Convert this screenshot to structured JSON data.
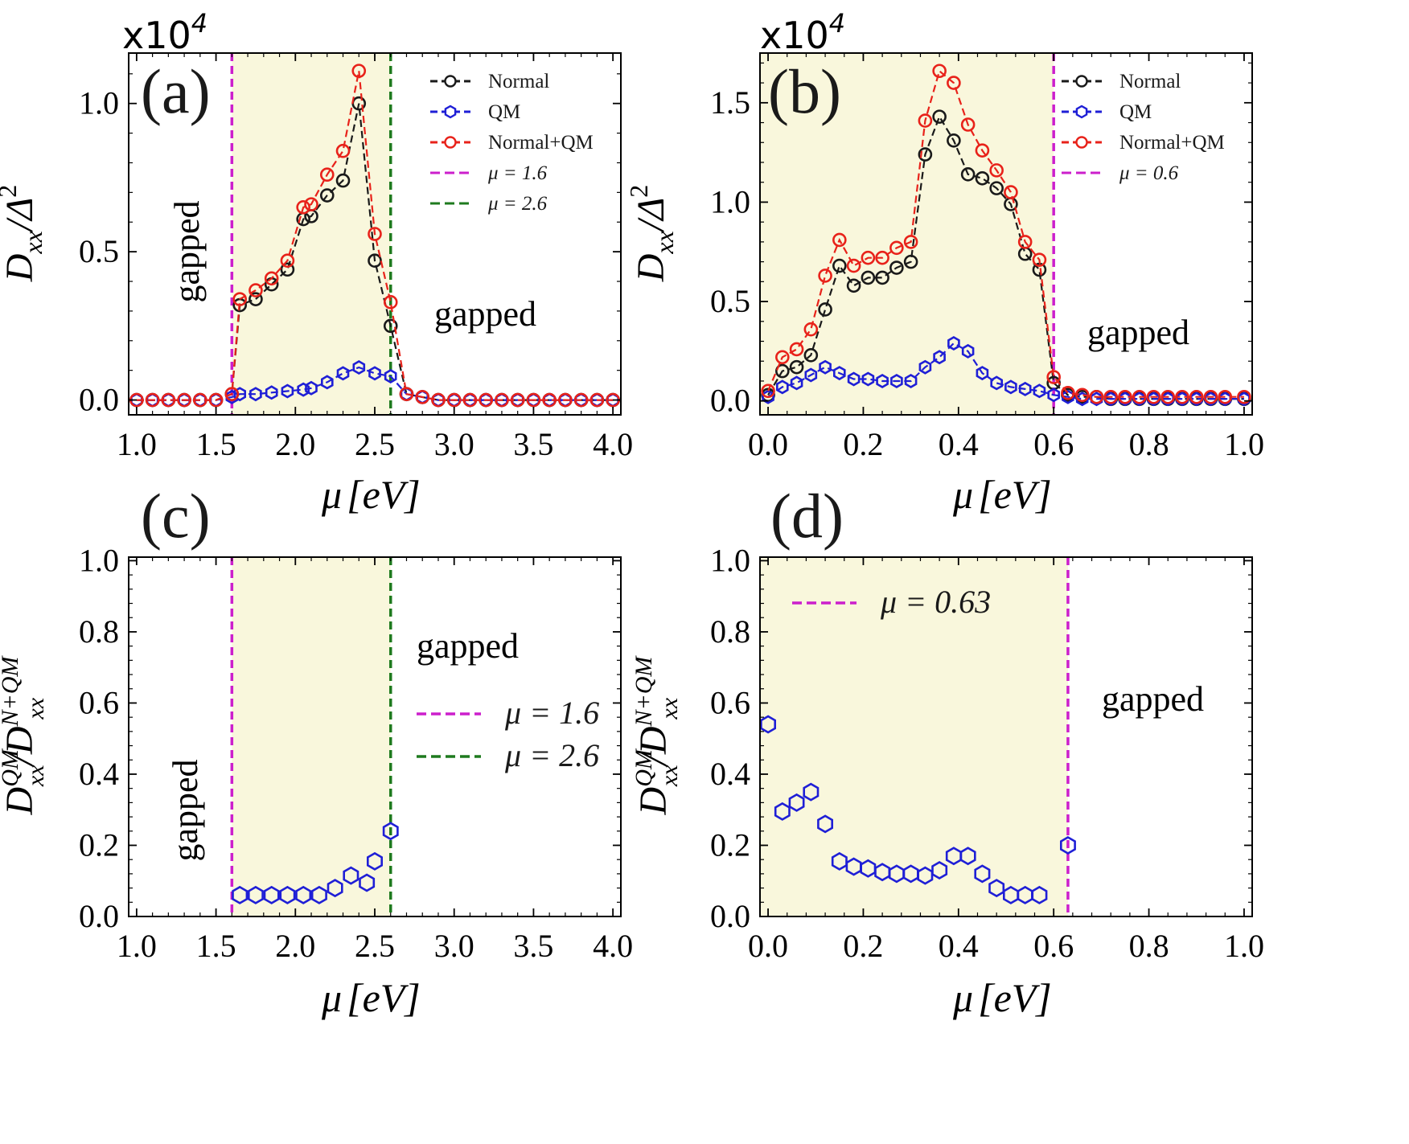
{
  "chart_data": [
    {
      "id": "a",
      "type": "line",
      "panel_label": "(a)",
      "scale_label": "x10",
      "scale_exponent": "4",
      "xlabel_mu": "μ",
      "xlabel_unit": "[eV]",
      "ylabel_main": "D",
      "ylabel_sub": "xx",
      "ylabel_denominator": "/Δ",
      "ylabel_power": "2",
      "xlim": [
        0.95,
        4.05
      ],
      "ylim": [
        -0.05,
        1.17
      ],
      "xticks": [
        1.0,
        1.5,
        2.0,
        2.5,
        3.0,
        3.5,
        4.0
      ],
      "xtick_labels": [
        "1.0",
        "1.5",
        "2.0",
        "2.5",
        "3.0",
        "3.5",
        "4.0"
      ],
      "yticks": [
        0.0,
        0.5,
        1.0
      ],
      "ytick_labels": [
        "0.0",
        "0.5",
        "1.0"
      ],
      "shaded_region": [
        1.6,
        2.6
      ],
      "shade_color": "#f9f7dc",
      "vlines": [
        {
          "x": 1.6,
          "color": "#cc1fcc"
        },
        {
          "x": 2.6,
          "color": "#1e7a1e"
        }
      ],
      "annotations": [
        "gapped",
        "gapped"
      ],
      "legend": [
        {
          "label": "Normal",
          "color": "#1a1a1a",
          "style": "circle-line"
        },
        {
          "label": "QM",
          "color": "#1f1fd6",
          "style": "hex-line"
        },
        {
          "label": "Normal+QM",
          "color": "#e8221a",
          "style": "circle-line"
        },
        {
          "label": "μ = 1.6",
          "color": "#cc1fcc",
          "style": "dash"
        },
        {
          "label": "μ = 2.6",
          "color": "#1e7a1e",
          "style": "dash"
        }
      ],
      "series": [
        {
          "name": "Normal",
          "color": "#1a1a1a",
          "marker": "circle",
          "x": [
            1.0,
            1.1,
            1.2,
            1.3,
            1.4,
            1.5,
            1.6,
            1.65,
            1.75,
            1.85,
            1.95,
            2.05,
            2.1,
            2.2,
            2.3,
            2.4,
            2.5,
            2.6,
            2.7,
            2.8,
            2.9,
            3.0,
            3.1,
            3.2,
            3.3,
            3.4,
            3.5,
            3.6,
            3.7,
            3.8,
            3.9,
            4.0
          ],
          "values": [
            0.0,
            0.0,
            0.0,
            0.0,
            0.0,
            0.0,
            0.02,
            0.32,
            0.34,
            0.39,
            0.44,
            0.61,
            0.62,
            0.69,
            0.74,
            1.0,
            0.47,
            0.25,
            0.02,
            0.01,
            0.0,
            0.0,
            0.0,
            0.0,
            0.0,
            0.0,
            0.0,
            0.0,
            0.0,
            0.0,
            0.0,
            0.0
          ]
        },
        {
          "name": "QM",
          "color": "#1f1fd6",
          "marker": "hexagon",
          "x": [
            1.0,
            1.1,
            1.2,
            1.3,
            1.4,
            1.5,
            1.6,
            1.65,
            1.75,
            1.85,
            1.95,
            2.05,
            2.1,
            2.2,
            2.3,
            2.4,
            2.5,
            2.6,
            2.7,
            2.8,
            2.9,
            3.0,
            3.1,
            3.2,
            3.3,
            3.4,
            3.5,
            3.6,
            3.7,
            3.8,
            3.9,
            4.0
          ],
          "values": [
            0.0,
            0.0,
            0.0,
            0.0,
            0.0,
            0.0,
            0.01,
            0.02,
            0.02,
            0.025,
            0.03,
            0.035,
            0.04,
            0.06,
            0.09,
            0.11,
            0.09,
            0.08,
            0.02,
            0.01,
            0.0,
            0.0,
            0.0,
            0.0,
            0.0,
            0.0,
            0.0,
            0.0,
            0.0,
            0.0,
            0.0,
            0.0
          ]
        },
        {
          "name": "Normal+QM",
          "color": "#e8221a",
          "marker": "circle",
          "x": [
            1.0,
            1.1,
            1.2,
            1.3,
            1.4,
            1.5,
            1.6,
            1.65,
            1.75,
            1.85,
            1.95,
            2.05,
            2.1,
            2.2,
            2.3,
            2.4,
            2.5,
            2.6,
            2.7,
            2.8,
            2.9,
            3.0,
            3.1,
            3.2,
            3.3,
            3.4,
            3.5,
            3.6,
            3.7,
            3.8,
            3.9,
            4.0
          ],
          "values": [
            0.0,
            0.0,
            0.0,
            0.0,
            0.0,
            0.0,
            0.02,
            0.34,
            0.37,
            0.41,
            0.47,
            0.65,
            0.66,
            0.76,
            0.84,
            1.11,
            0.56,
            0.33,
            0.02,
            0.01,
            0.0,
            0.0,
            0.0,
            0.0,
            0.0,
            0.0,
            0.0,
            0.0,
            0.0,
            0.0,
            0.0,
            0.0
          ]
        }
      ]
    },
    {
      "id": "b",
      "type": "line",
      "panel_label": "(b)",
      "scale_label": "x10",
      "scale_exponent": "4",
      "xlabel_mu": "μ",
      "xlabel_unit": "[eV]",
      "ylabel_main": "D",
      "ylabel_sub": "xx",
      "ylabel_denominator": "/Δ",
      "ylabel_power": "2",
      "xlim": [
        -0.017,
        1.017
      ],
      "ylim": [
        -0.07,
        1.75
      ],
      "xticks": [
        0.0,
        0.2,
        0.4,
        0.6,
        0.8,
        1.0
      ],
      "xtick_labels": [
        "0.0",
        "0.2",
        "0.4",
        "0.6",
        "0.8",
        "1.0"
      ],
      "yticks": [
        0.0,
        0.5,
        1.0,
        1.5
      ],
      "ytick_labels": [
        "0.0",
        "0.5",
        "1.0",
        "1.5"
      ],
      "shaded_region": [
        -0.017,
        0.6
      ],
      "shade_color": "#f9f7dc",
      "vlines": [
        {
          "x": 0.6,
          "color": "#cc1fcc"
        }
      ],
      "annotations": [
        "gapped"
      ],
      "legend": [
        {
          "label": "Normal",
          "color": "#1a1a1a",
          "style": "circle-line"
        },
        {
          "label": "QM",
          "color": "#1f1fd6",
          "style": "hex-line"
        },
        {
          "label": "Normal+QM",
          "color": "#e8221a",
          "style": "circle-line"
        },
        {
          "label": "μ = 0.6",
          "color": "#cc1fcc",
          "style": "dash"
        }
      ],
      "series": [
        {
          "name": "Normal",
          "color": "#1a1a1a",
          "marker": "circle",
          "x": [
            0.0,
            0.03,
            0.06,
            0.09,
            0.12,
            0.15,
            0.18,
            0.21,
            0.24,
            0.27,
            0.3,
            0.33,
            0.36,
            0.39,
            0.42,
            0.45,
            0.48,
            0.51,
            0.54,
            0.57,
            0.6,
            0.63,
            0.66,
            0.69,
            0.72,
            0.75,
            0.78,
            0.81,
            0.84,
            0.87,
            0.9,
            0.93,
            0.96,
            1.0
          ],
          "values": [
            0.03,
            0.15,
            0.17,
            0.23,
            0.46,
            0.68,
            0.58,
            0.62,
            0.62,
            0.67,
            0.7,
            1.24,
            1.43,
            1.31,
            1.14,
            1.12,
            1.07,
            0.99,
            0.74,
            0.66,
            0.09,
            0.03,
            0.02,
            0.02,
            0.01,
            0.01,
            0.01,
            0.01,
            0.01,
            0.01,
            0.01,
            0.01,
            0.01,
            0.01
          ]
        },
        {
          "name": "QM",
          "color": "#1f1fd6",
          "marker": "hexagon",
          "x": [
            0.0,
            0.03,
            0.06,
            0.09,
            0.12,
            0.15,
            0.18,
            0.21,
            0.24,
            0.27,
            0.3,
            0.33,
            0.36,
            0.39,
            0.42,
            0.45,
            0.48,
            0.51,
            0.54,
            0.57,
            0.6,
            0.63,
            0.66,
            0.69,
            0.72,
            0.75,
            0.78,
            0.81,
            0.84,
            0.87,
            0.9,
            0.93,
            0.96,
            1.0
          ],
          "values": [
            0.02,
            0.07,
            0.09,
            0.13,
            0.17,
            0.14,
            0.11,
            0.11,
            0.1,
            0.1,
            0.1,
            0.17,
            0.22,
            0.29,
            0.25,
            0.14,
            0.09,
            0.07,
            0.06,
            0.05,
            0.03,
            0.02,
            0.01,
            0.01,
            0.01,
            0.01,
            0.01,
            0.01,
            0.01,
            0.01,
            0.01,
            0.01,
            0.01,
            0.01
          ]
        },
        {
          "name": "Normal+QM",
          "color": "#e8221a",
          "marker": "circle",
          "x": [
            0.0,
            0.03,
            0.06,
            0.09,
            0.12,
            0.15,
            0.18,
            0.21,
            0.24,
            0.27,
            0.3,
            0.33,
            0.36,
            0.39,
            0.42,
            0.45,
            0.48,
            0.51,
            0.54,
            0.57,
            0.6,
            0.63,
            0.66,
            0.69,
            0.72,
            0.75,
            0.78,
            0.81,
            0.84,
            0.87,
            0.9,
            0.93,
            0.96,
            1.0
          ],
          "values": [
            0.05,
            0.22,
            0.26,
            0.36,
            0.63,
            0.81,
            0.68,
            0.72,
            0.72,
            0.77,
            0.8,
            1.41,
            1.66,
            1.6,
            1.39,
            1.26,
            1.16,
            1.05,
            0.8,
            0.71,
            0.12,
            0.04,
            0.03,
            0.02,
            0.02,
            0.02,
            0.02,
            0.02,
            0.02,
            0.02,
            0.02,
            0.02,
            0.02,
            0.02
          ]
        }
      ]
    },
    {
      "id": "c",
      "type": "scatter",
      "panel_label": "(c)",
      "xlabel_mu": "μ",
      "xlabel_unit": "[eV]",
      "ylabel_main": "D",
      "ylabel_sub": "xx",
      "ylabel_sup": "QM",
      "ylabel_denominator": "/D",
      "ylabel_sub2": "xx",
      "ylabel_sup2": "N+QM",
      "xlim": [
        0.95,
        4.05
      ],
      "ylim": [
        0.0,
        1.01
      ],
      "xticks": [
        1.0,
        1.5,
        2.0,
        2.5,
        3.0,
        3.5,
        4.0
      ],
      "xtick_labels": [
        "1.0",
        "1.5",
        "2.0",
        "2.5",
        "3.0",
        "3.5",
        "4.0"
      ],
      "yticks": [
        0.0,
        0.2,
        0.4,
        0.6,
        0.8,
        1.0
      ],
      "ytick_labels": [
        "0.0",
        "0.2",
        "0.4",
        "0.6",
        "0.8",
        "1.0"
      ],
      "shaded_region": [
        1.6,
        2.6
      ],
      "shade_color": "#f9f7dc",
      "vlines": [
        {
          "x": 1.6,
          "color": "#cc1fcc"
        },
        {
          "x": 2.6,
          "color": "#1e7a1e"
        }
      ],
      "annotations": [
        "gapped",
        "gapped"
      ],
      "legend": [
        {
          "label": "μ = 1.6",
          "color": "#cc1fcc",
          "style": "dash"
        },
        {
          "label": "μ = 2.6",
          "color": "#1e7a1e",
          "style": "dash"
        }
      ],
      "series": [
        {
          "name": "QM/(N+QM)",
          "color": "#1f1fd6",
          "marker": "hexagon",
          "x": [
            1.65,
            1.75,
            1.85,
            1.95,
            2.05,
            2.15,
            2.25,
            2.35,
            2.45,
            2.5,
            2.6
          ],
          "values": [
            0.06,
            0.06,
            0.06,
            0.06,
            0.06,
            0.06,
            0.08,
            0.115,
            0.095,
            0.155,
            0.24
          ]
        }
      ]
    },
    {
      "id": "d",
      "type": "scatter",
      "panel_label": "(d)",
      "xlabel_mu": "μ",
      "xlabel_unit": "[eV]",
      "ylabel_main": "D",
      "ylabel_sub": "xx",
      "ylabel_sup": "QM",
      "ylabel_denominator": "/D",
      "ylabel_sub2": "xx",
      "ylabel_sup2": "N+QM",
      "xlim": [
        -0.017,
        1.017
      ],
      "ylim": [
        0.0,
        1.01
      ],
      "xticks": [
        0.0,
        0.2,
        0.4,
        0.6,
        0.8,
        1.0
      ],
      "xtick_labels": [
        "0.0",
        "0.2",
        "0.4",
        "0.6",
        "0.8",
        "1.0"
      ],
      "yticks": [
        0.0,
        0.2,
        0.4,
        0.6,
        0.8,
        1.0
      ],
      "ytick_labels": [
        "0.0",
        "0.2",
        "0.4",
        "0.6",
        "0.8",
        "1.0"
      ],
      "shaded_region": [
        -0.017,
        0.63
      ],
      "shade_color": "#f9f7dc",
      "vlines": [
        {
          "x": 0.63,
          "color": "#cc1fcc"
        }
      ],
      "annotations": [
        "gapped"
      ],
      "legend": [
        {
          "label": "μ = 0.63",
          "color": "#cc1fcc",
          "style": "dash"
        }
      ],
      "series": [
        {
          "name": "QM/(N+QM)",
          "color": "#1f1fd6",
          "marker": "hexagon",
          "x": [
            0.0,
            0.03,
            0.06,
            0.09,
            0.12,
            0.15,
            0.18,
            0.21,
            0.24,
            0.27,
            0.3,
            0.33,
            0.36,
            0.39,
            0.42,
            0.45,
            0.48,
            0.51,
            0.54,
            0.57,
            0.63
          ],
          "values": [
            0.54,
            0.295,
            0.32,
            0.35,
            0.26,
            0.155,
            0.14,
            0.135,
            0.125,
            0.12,
            0.12,
            0.115,
            0.13,
            0.17,
            0.17,
            0.12,
            0.08,
            0.06,
            0.06,
            0.06,
            0.2
          ]
        }
      ]
    }
  ]
}
